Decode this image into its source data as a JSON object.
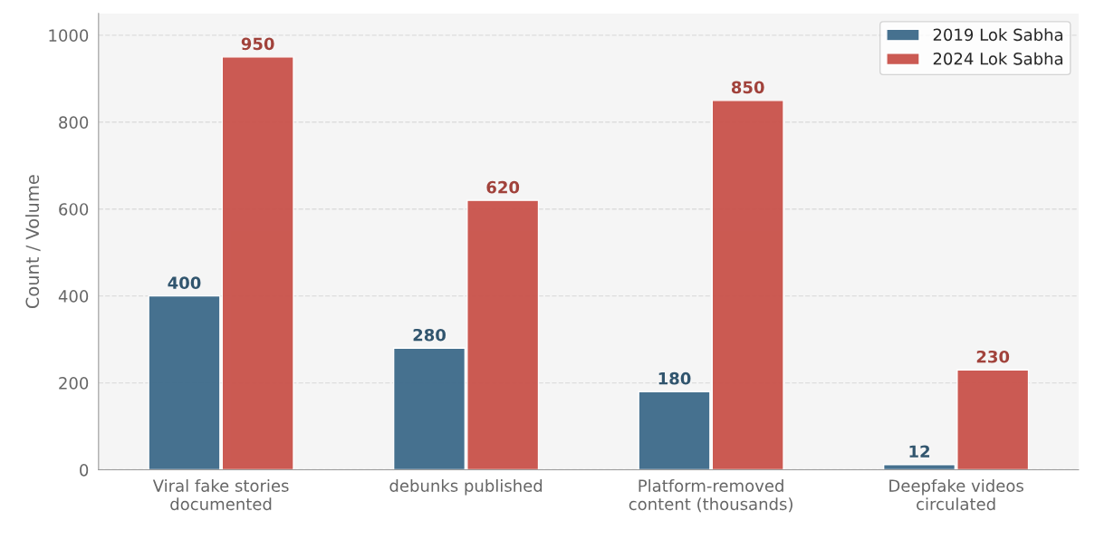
{
  "chart_data": {
    "type": "bar",
    "ylabel": "Count / Volume",
    "categories": [
      "Viral fake stories\ndocumented",
      "debunks published",
      "Platform-removed\ncontent (thousands)",
      "Deepfake videos\ncirculated"
    ],
    "series": [
      {
        "name": "2019 Lok Sabha",
        "color": "#3d6a8a",
        "values": [
          400,
          280,
          180,
          12
        ]
      },
      {
        "name": "2024 Lok Sabha",
        "color": "#c9524a",
        "values": [
          950,
          620,
          850,
          230
        ]
      }
    ],
    "ylim": [
      0,
      1050
    ],
    "yticks": [
      0,
      200,
      400,
      600,
      800,
      1000
    ],
    "grid": "y",
    "legend": "top right",
    "data_labels": true
  }
}
